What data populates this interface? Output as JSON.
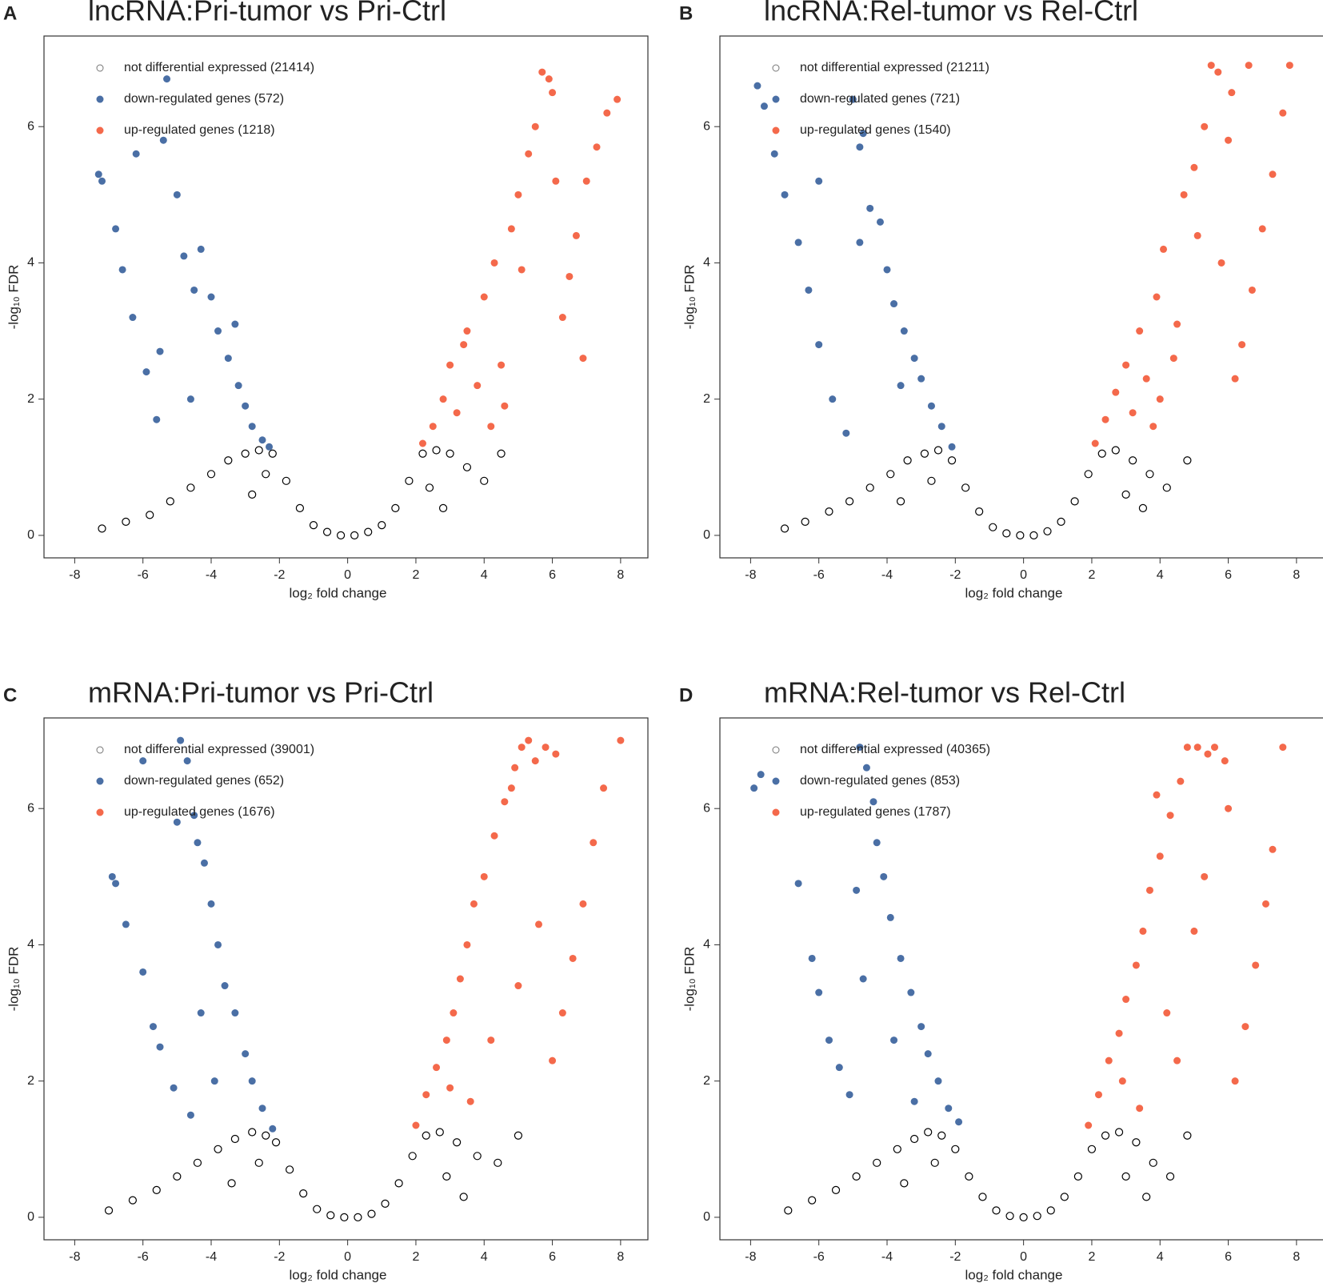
{
  "chart_data": [
    {
      "type": "scatter",
      "panel": "A",
      "title": "lncRNA:Pri-tumor vs Pri-Ctrl",
      "xlabel": "log₂ fold change",
      "ylabel": "-log₁₀ FDR",
      "xlim": [
        -8.9,
        8.8
      ],
      "ylim": [
        -0.33,
        7.33
      ],
      "xticks": [
        -8,
        -6,
        -4,
        -2,
        0,
        2,
        4,
        6,
        8
      ],
      "yticks": [
        0,
        2,
        4,
        6
      ],
      "series": [
        {
          "name": "not differential expressed (21414)",
          "color": "#000000",
          "marker": "open",
          "x": [
            -7.2,
            -6.5,
            -5.8,
            -5.2,
            -4.6,
            -4.0,
            -3.5,
            -3.0,
            -2.6,
            -2.2,
            -1.8,
            -1.4,
            -1.0,
            -0.6,
            -0.2,
            0.2,
            0.6,
            1.0,
            1.4,
            1.8,
            2.2,
            2.6,
            3.0,
            3.5,
            4.0,
            4.5,
            -2.8,
            -2.4,
            2.4,
            2.8
          ],
          "values": [
            0.1,
            0.2,
            0.3,
            0.5,
            0.7,
            0.9,
            1.1,
            1.2,
            1.25,
            1.2,
            0.8,
            0.4,
            0.15,
            0.05,
            0.0,
            0.0,
            0.05,
            0.15,
            0.4,
            0.8,
            1.2,
            1.25,
            1.2,
            1.0,
            0.8,
            1.2,
            0.6,
            0.9,
            0.7,
            0.4
          ]
        },
        {
          "name": "down-regulated genes (572)",
          "color": "#4a6fa5",
          "marker": "filled",
          "x": [
            -7.3,
            -7.2,
            -6.8,
            -6.6,
            -6.3,
            -5.9,
            -5.6,
            -5.4,
            -5.3,
            -5.0,
            -4.8,
            -4.5,
            -4.3,
            -4.0,
            -3.8,
            -3.5,
            -3.2,
            -3.0,
            -2.8,
            -2.5,
            -2.3,
            -6.2,
            -5.5,
            -4.6,
            -3.3
          ],
          "values": [
            5.3,
            5.2,
            4.5,
            3.9,
            3.2,
            2.4,
            1.7,
            5.8,
            6.7,
            5.0,
            4.1,
            3.6,
            4.2,
            3.5,
            3.0,
            2.6,
            2.2,
            1.9,
            1.6,
            1.4,
            1.3,
            5.6,
            2.7,
            2.0,
            3.1
          ]
        },
        {
          "name": "up-regulated genes (1218)",
          "color": "#f4694b",
          "marker": "filled",
          "x": [
            2.2,
            2.5,
            2.8,
            3.0,
            3.2,
            3.5,
            3.8,
            4.0,
            4.3,
            4.5,
            4.8,
            5.0,
            5.3,
            5.5,
            5.7,
            5.9,
            6.1,
            6.3,
            6.5,
            6.7,
            7.0,
            7.3,
            7.6,
            7.9,
            3.4,
            4.2,
            5.1,
            6.0,
            4.6,
            6.9
          ],
          "values": [
            1.35,
            1.6,
            2.0,
            2.5,
            1.8,
            3.0,
            2.2,
            3.5,
            4.0,
            2.5,
            4.5,
            5.0,
            5.6,
            6.0,
            6.8,
            6.7,
            5.2,
            3.2,
            3.8,
            4.4,
            5.2,
            5.7,
            6.2,
            6.4,
            2.8,
            1.6,
            3.9,
            6.5,
            1.9,
            2.6
          ]
        }
      ]
    },
    {
      "type": "scatter",
      "panel": "B",
      "title": "lncRNA:Rel-tumor vs Rel-Ctrl",
      "xlabel": "log₂ fold change",
      "ylabel": "-log₁₀ FDR",
      "xlim": [
        -8.9,
        8.8
      ],
      "ylim": [
        -0.33,
        7.33
      ],
      "xticks": [
        -8,
        -6,
        -4,
        -2,
        0,
        2,
        4,
        6,
        8
      ],
      "yticks": [
        0,
        2,
        4,
        6
      ],
      "series": [
        {
          "name": "not differential expressed (21211)",
          "color": "#000000",
          "marker": "open",
          "x": [
            -7.0,
            -6.4,
            -5.7,
            -5.1,
            -4.5,
            -3.9,
            -3.4,
            -2.9,
            -2.5,
            -2.1,
            -1.7,
            -1.3,
            -0.9,
            -0.5,
            -0.1,
            0.3,
            0.7,
            1.1,
            1.5,
            1.9,
            2.3,
            2.7,
            3.2,
            3.7,
            4.2,
            4.8,
            -3.6,
            -2.7,
            3.0,
            3.5
          ],
          "values": [
            0.1,
            0.2,
            0.35,
            0.5,
            0.7,
            0.9,
            1.1,
            1.2,
            1.25,
            1.1,
            0.7,
            0.35,
            0.12,
            0.03,
            0.0,
            0.0,
            0.06,
            0.2,
            0.5,
            0.9,
            1.2,
            1.25,
            1.1,
            0.9,
            0.7,
            1.1,
            0.5,
            0.8,
            0.6,
            0.4
          ]
        },
        {
          "name": "down-regulated genes (721)",
          "color": "#4a6fa5",
          "marker": "filled",
          "x": [
            -7.8,
            -7.6,
            -7.3,
            -7.0,
            -6.6,
            -6.3,
            -6.0,
            -5.6,
            -5.2,
            -5.0,
            -4.8,
            -4.7,
            -4.5,
            -4.2,
            -4.0,
            -3.8,
            -3.5,
            -3.2,
            -3.0,
            -2.7,
            -2.4,
            -2.1,
            -6.0,
            -4.8,
            -3.6
          ],
          "values": [
            6.6,
            6.3,
            5.6,
            5.0,
            4.3,
            3.6,
            2.8,
            2.0,
            1.5,
            6.4,
            5.7,
            5.9,
            4.8,
            4.6,
            3.9,
            3.4,
            3.0,
            2.6,
            2.3,
            1.9,
            1.6,
            1.3,
            5.2,
            4.3,
            2.2
          ]
        },
        {
          "name": "up-regulated genes (1540)",
          "color": "#f4694b",
          "marker": "filled",
          "x": [
            2.1,
            2.4,
            2.7,
            3.0,
            3.2,
            3.4,
            3.6,
            3.9,
            4.1,
            4.4,
            4.7,
            5.0,
            5.3,
            5.5,
            5.7,
            6.0,
            6.2,
            6.4,
            6.7,
            7.0,
            7.3,
            7.6,
            7.8,
            5.1,
            4.5,
            6.1,
            3.8,
            5.8,
            6.6,
            4.0
          ],
          "values": [
            1.35,
            1.7,
            2.1,
            2.5,
            1.8,
            3.0,
            2.3,
            3.5,
            4.2,
            2.6,
            5.0,
            5.4,
            6.0,
            6.9,
            6.8,
            5.8,
            2.3,
            2.8,
            3.6,
            4.5,
            5.3,
            6.2,
            6.9,
            4.4,
            3.1,
            6.5,
            1.6,
            4.0,
            6.9,
            2.0
          ]
        }
      ]
    },
    {
      "type": "scatter",
      "panel": "C",
      "title": "mRNA:Pri-tumor vs Pri-Ctrl",
      "xlabel": "log₂ fold change",
      "ylabel": "-log₁₀ FDR",
      "xlim": [
        -8.9,
        8.8
      ],
      "ylim": [
        -0.33,
        7.33
      ],
      "xticks": [
        -8,
        -6,
        -4,
        -2,
        0,
        2,
        4,
        6,
        8
      ],
      "yticks": [
        0,
        2,
        4,
        6
      ],
      "series": [
        {
          "name": "not differential expressed (39001)",
          "color": "#000000",
          "marker": "open",
          "x": [
            -7.0,
            -6.3,
            -5.6,
            -5.0,
            -4.4,
            -3.8,
            -3.3,
            -2.8,
            -2.4,
            -2.1,
            -1.7,
            -1.3,
            -0.9,
            -0.5,
            -0.1,
            0.3,
            0.7,
            1.1,
            1.5,
            1.9,
            2.3,
            2.7,
            3.2,
            3.8,
            4.4,
            5.0,
            -3.4,
            -2.6,
            2.9,
            3.4
          ],
          "values": [
            0.1,
            0.25,
            0.4,
            0.6,
            0.8,
            1.0,
            1.15,
            1.25,
            1.2,
            1.1,
            0.7,
            0.35,
            0.12,
            0.03,
            0.0,
            0.0,
            0.05,
            0.2,
            0.5,
            0.9,
            1.2,
            1.25,
            1.1,
            0.9,
            0.8,
            1.2,
            0.5,
            0.8,
            0.6,
            0.3
          ]
        },
        {
          "name": "down-regulated genes (652)",
          "color": "#4a6fa5",
          "marker": "filled",
          "x": [
            -6.9,
            -6.8,
            -6.5,
            -6.0,
            -5.7,
            -5.5,
            -5.1,
            -4.9,
            -4.7,
            -4.5,
            -4.4,
            -4.2,
            -4.0,
            -3.8,
            -3.6,
            -3.3,
            -3.0,
            -2.8,
            -2.5,
            -2.2,
            -5.0,
            -4.3,
            -3.9,
            -6.0,
            -4.6
          ],
          "values": [
            5.0,
            4.9,
            4.3,
            3.6,
            2.8,
            2.5,
            1.9,
            7.0,
            6.7,
            5.9,
            5.5,
            5.2,
            4.6,
            4.0,
            3.4,
            3.0,
            2.4,
            2.0,
            1.6,
            1.3,
            5.8,
            3.0,
            2.0,
            6.7,
            1.5
          ]
        },
        {
          "name": "up-regulated genes (1676)",
          "color": "#f4694b",
          "marker": "filled",
          "x": [
            2.0,
            2.3,
            2.6,
            2.9,
            3.1,
            3.3,
            3.5,
            3.7,
            4.0,
            4.3,
            4.6,
            4.9,
            5.1,
            5.3,
            5.5,
            5.8,
            6.0,
            6.3,
            6.6,
            6.9,
            7.2,
            7.5,
            8.0,
            4.2,
            5.0,
            3.6,
            4.8,
            6.1,
            5.6,
            3.0
          ],
          "values": [
            1.35,
            1.8,
            2.2,
            2.6,
            3.0,
            3.5,
            4.0,
            4.6,
            5.0,
            5.6,
            6.1,
            6.6,
            6.9,
            7.0,
            6.7,
            6.9,
            2.3,
            3.0,
            3.8,
            4.6,
            5.5,
            6.3,
            7.0,
            2.6,
            3.4,
            1.7,
            6.3,
            6.8,
            4.3,
            1.9
          ]
        }
      ]
    },
    {
      "type": "scatter",
      "panel": "D",
      "title": "mRNA:Rel-tumor vs Rel-Ctrl",
      "xlabel": "log₂ fold change",
      "ylabel": "-log₁₀ FDR",
      "xlim": [
        -8.9,
        8.8
      ],
      "ylim": [
        -0.33,
        7.33
      ],
      "xticks": [
        -8,
        -6,
        -4,
        -2,
        0,
        2,
        4,
        6,
        8
      ],
      "yticks": [
        0,
        2,
        4,
        6
      ],
      "series": [
        {
          "name": "not differential expressed (40365)",
          "color": "#000000",
          "marker": "open",
          "x": [
            -6.9,
            -6.2,
            -5.5,
            -4.9,
            -4.3,
            -3.7,
            -3.2,
            -2.8,
            -2.4,
            -2.0,
            -1.6,
            -1.2,
            -0.8,
            -0.4,
            0.0,
            0.4,
            0.8,
            1.2,
            1.6,
            2.0,
            2.4,
            2.8,
            3.3,
            3.8,
            4.3,
            4.8,
            -3.5,
            -2.6,
            3.0,
            3.6
          ],
          "values": [
            0.1,
            0.25,
            0.4,
            0.6,
            0.8,
            1.0,
            1.15,
            1.25,
            1.2,
            1.0,
            0.6,
            0.3,
            0.1,
            0.02,
            0.0,
            0.02,
            0.1,
            0.3,
            0.6,
            1.0,
            1.2,
            1.25,
            1.1,
            0.8,
            0.6,
            1.2,
            0.5,
            0.8,
            0.6,
            0.3
          ]
        },
        {
          "name": "down-regulated genes (853)",
          "color": "#4a6fa5",
          "marker": "filled",
          "x": [
            -7.9,
            -7.7,
            -6.6,
            -6.2,
            -6.0,
            -5.7,
            -5.4,
            -5.1,
            -4.8,
            -4.6,
            -4.4,
            -4.3,
            -4.1,
            -3.9,
            -3.6,
            -3.3,
            -3.0,
            -2.8,
            -2.5,
            -2.2,
            -1.9,
            -4.7,
            -3.8,
            -4.9,
            -3.2
          ],
          "values": [
            6.3,
            6.5,
            4.9,
            3.8,
            3.3,
            2.6,
            2.2,
            1.8,
            6.9,
            6.6,
            6.1,
            5.5,
            5.0,
            4.4,
            3.8,
            3.3,
            2.8,
            2.4,
            2.0,
            1.6,
            1.4,
            3.5,
            2.6,
            4.8,
            1.7
          ]
        },
        {
          "name": "up-regulated genes (1787)",
          "color": "#f4694b",
          "marker": "filled",
          "x": [
            1.9,
            2.2,
            2.5,
            2.8,
            3.0,
            3.3,
            3.5,
            3.7,
            4.0,
            4.3,
            4.6,
            4.8,
            5.1,
            5.4,
            5.6,
            5.9,
            6.2,
            6.5,
            6.8,
            7.1,
            7.3,
            7.6,
            4.2,
            5.0,
            3.4,
            4.5,
            6.0,
            5.3,
            2.9,
            3.9
          ],
          "values": [
            1.35,
            1.8,
            2.3,
            2.7,
            3.2,
            3.7,
            4.2,
            4.8,
            5.3,
            5.9,
            6.4,
            6.9,
            6.9,
            6.8,
            6.9,
            6.7,
            2.0,
            2.8,
            3.7,
            4.6,
            5.4,
            6.9,
            3.0,
            4.2,
            1.6,
            2.3,
            6.0,
            5.0,
            2.0,
            6.2
          ]
        }
      ]
    }
  ]
}
